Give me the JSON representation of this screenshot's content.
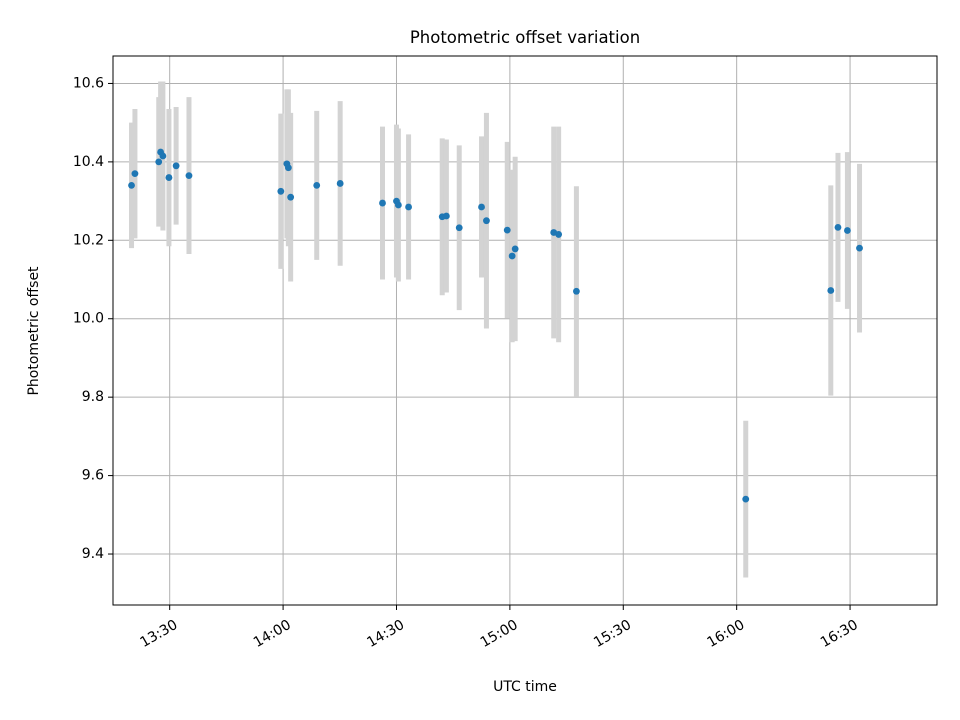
{
  "chart_data": {
    "type": "scatter",
    "title": "Photometric offset variation",
    "xlabel": "UTC time",
    "ylabel": "Photometric offset",
    "x_unit": "UTC time (HH:MM)",
    "xlim": [
      "13:15",
      "16:53"
    ],
    "ylim": [
      9.27,
      10.67
    ],
    "grid": true,
    "x_ticks": [
      "13:30",
      "14:00",
      "14:30",
      "15:00",
      "15:30",
      "16:00",
      "16:30"
    ],
    "y_ticks": [
      9.4,
      9.6,
      9.8,
      10.0,
      10.2,
      10.4,
      10.6
    ],
    "y_tick_labels": [
      "9.4",
      "9.6",
      "9.8",
      "10.0",
      "10.2",
      "10.4",
      "10.6"
    ],
    "marker_color": "#1f77b4",
    "errorbar_color": "#d3d3d3",
    "points": [
      {
        "x": "13:19:54",
        "y": 10.34,
        "err": 0.16
      },
      {
        "x": "13:20:48",
        "y": 10.37,
        "err": 0.165
      },
      {
        "x": "13:27:06",
        "y": 10.4,
        "err": 0.165
      },
      {
        "x": "13:27:36",
        "y": 10.425,
        "err": 0.18
      },
      {
        "x": "13:28:12",
        "y": 10.415,
        "err": 0.19
      },
      {
        "x": "13:29:48",
        "y": 10.36,
        "err": 0.175
      },
      {
        "x": "13:31:42",
        "y": 10.39,
        "err": 0.15
      },
      {
        "x": "13:35:06",
        "y": 10.365,
        "err": 0.2
      },
      {
        "x": "13:59:24",
        "y": 10.325,
        "err": 0.198
      },
      {
        "x": "14:01:00",
        "y": 10.395,
        "err": 0.19
      },
      {
        "x": "14:01:24",
        "y": 10.385,
        "err": 0.2
      },
      {
        "x": "14:02:00",
        "y": 10.31,
        "err": 0.215
      },
      {
        "x": "14:08:54",
        "y": 10.34,
        "err": 0.19
      },
      {
        "x": "14:15:06",
        "y": 10.345,
        "err": 0.21
      },
      {
        "x": "14:26:18",
        "y": 10.295,
        "err": 0.195
      },
      {
        "x": "14:30:00",
        "y": 10.3,
        "err": 0.195
      },
      {
        "x": "14:30:30",
        "y": 10.29,
        "err": 0.195
      },
      {
        "x": "14:33:12",
        "y": 10.285,
        "err": 0.185
      },
      {
        "x": "14:42:06",
        "y": 10.26,
        "err": 0.2
      },
      {
        "x": "14:43:12",
        "y": 10.262,
        "err": 0.195
      },
      {
        "x": "14:46:36",
        "y": 10.232,
        "err": 0.21
      },
      {
        "x": "14:52:30",
        "y": 10.285,
        "err": 0.18
      },
      {
        "x": "14:53:48",
        "y": 10.25,
        "err": 0.275
      },
      {
        "x": "14:59:18",
        "y": 10.226,
        "err": 0.225
      },
      {
        "x": "15:00:36",
        "y": 10.16,
        "err": 0.22
      },
      {
        "x": "15:01:24",
        "y": 10.178,
        "err": 0.235
      },
      {
        "x": "15:11:36",
        "y": 10.22,
        "err": 0.27
      },
      {
        "x": "15:12:54",
        "y": 10.215,
        "err": 0.275
      },
      {
        "x": "15:17:36",
        "y": 10.07,
        "err": 0.268
      },
      {
        "x": "16:02:24",
        "y": 9.54,
        "err": 0.2
      },
      {
        "x": "16:24:54",
        "y": 10.072,
        "err": 0.268
      },
      {
        "x": "16:26:48",
        "y": 10.233,
        "err": 0.19
      },
      {
        "x": "16:29:18",
        "y": 10.225,
        "err": 0.2
      },
      {
        "x": "16:32:30",
        "y": 10.18,
        "err": 0.215
      }
    ]
  }
}
